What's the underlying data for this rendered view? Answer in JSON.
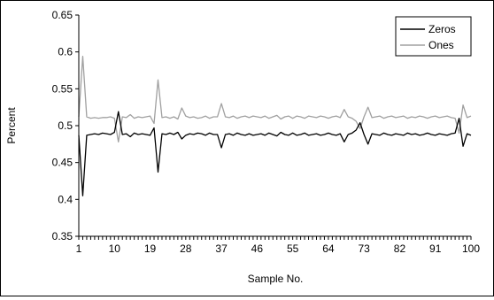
{
  "chart_data": {
    "type": "line",
    "title": "",
    "xlabel": "Sample No.",
    "ylabel": "Percent",
    "xlim": [
      1,
      100
    ],
    "ylim": [
      0.35,
      0.65
    ],
    "yticks": [
      "0.35",
      "0.4",
      "0.45",
      "0.5",
      "0.55",
      "0.6",
      "0.65"
    ],
    "xticks": [
      "1",
      "10",
      "19",
      "28",
      "37",
      "46",
      "55",
      "64",
      "73",
      "82",
      "91",
      "100"
    ],
    "grid": false,
    "legend_position": "top-right",
    "series": [
      {
        "name": "Zeros",
        "color": "#000000",
        "values": [
          0.487,
          0.405,
          0.487,
          0.488,
          0.489,
          0.488,
          0.49,
          0.489,
          0.488,
          0.491,
          0.519,
          0.488,
          0.489,
          0.485,
          0.49,
          0.488,
          0.489,
          0.488,
          0.487,
          0.497,
          0.437,
          0.489,
          0.488,
          0.49,
          0.488,
          0.491,
          0.482,
          0.487,
          0.489,
          0.488,
          0.49,
          0.489,
          0.487,
          0.49,
          0.488,
          0.488,
          0.47,
          0.488,
          0.489,
          0.487,
          0.49,
          0.488,
          0.487,
          0.489,
          0.487,
          0.488,
          0.489,
          0.487,
          0.49,
          0.488,
          0.486,
          0.491,
          0.488,
          0.487,
          0.49,
          0.487,
          0.488,
          0.49,
          0.487,
          0.488,
          0.489,
          0.487,
          0.488,
          0.49,
          0.488,
          0.487,
          0.489,
          0.478,
          0.488,
          0.49,
          0.494,
          0.504,
          0.488,
          0.475,
          0.489,
          0.488,
          0.487,
          0.49,
          0.488,
          0.487,
          0.489,
          0.488,
          0.487,
          0.49,
          0.488,
          0.489,
          0.487,
          0.488,
          0.49,
          0.488,
          0.487,
          0.489,
          0.488,
          0.487,
          0.489,
          0.49,
          0.51,
          0.472,
          0.489,
          0.487
        ]
      },
      {
        "name": "Ones",
        "color": "#a0a0a0",
        "values": [
          0.512,
          0.594,
          0.512,
          0.51,
          0.511,
          0.51,
          0.511,
          0.511,
          0.512,
          0.51,
          0.478,
          0.512,
          0.511,
          0.515,
          0.51,
          0.512,
          0.511,
          0.512,
          0.513,
          0.503,
          0.562,
          0.511,
          0.512,
          0.51,
          0.512,
          0.509,
          0.524,
          0.513,
          0.511,
          0.512,
          0.51,
          0.511,
          0.513,
          0.51,
          0.512,
          0.512,
          0.53,
          0.512,
          0.511,
          0.513,
          0.51,
          0.512,
          0.513,
          0.511,
          0.513,
          0.512,
          0.511,
          0.513,
          0.51,
          0.512,
          0.514,
          0.509,
          0.512,
          0.513,
          0.51,
          0.513,
          0.512,
          0.51,
          0.513,
          0.512,
          0.511,
          0.513,
          0.512,
          0.51,
          0.512,
          0.513,
          0.511,
          0.522,
          0.512,
          0.51,
          0.506,
          0.496,
          0.512,
          0.525,
          0.511,
          0.512,
          0.513,
          0.51,
          0.512,
          0.513,
          0.511,
          0.512,
          0.513,
          0.51,
          0.512,
          0.511,
          0.513,
          0.512,
          0.51,
          0.512,
          0.513,
          0.511,
          0.512,
          0.513,
          0.511,
          0.51,
          0.49,
          0.528,
          0.511,
          0.513
        ]
      }
    ]
  }
}
